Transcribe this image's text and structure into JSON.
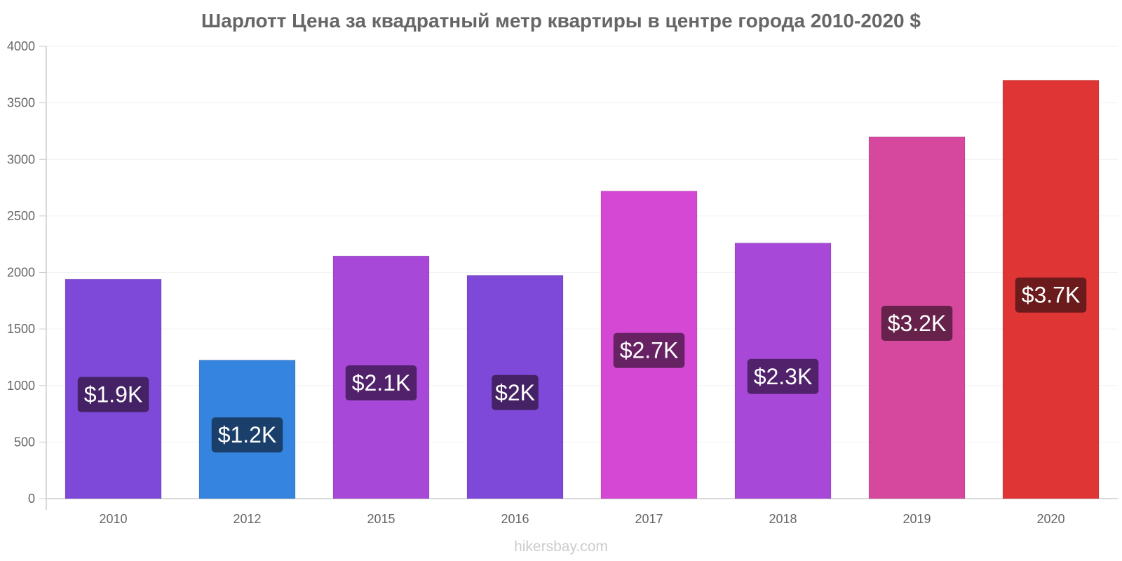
{
  "chart_data": {
    "type": "bar",
    "title": "Шарлотт Цена за квадратный метр квартиры в центре города 2010-2020 $",
    "xlabel": "",
    "ylabel": "",
    "ylim": [
      0,
      4000
    ],
    "yticks": [
      0,
      500,
      1000,
      1500,
      2000,
      2500,
      3000,
      3500,
      4000
    ],
    "grid": true,
    "categories": [
      "2010",
      "2012",
      "2015",
      "2016",
      "2017",
      "2018",
      "2019",
      "2020"
    ],
    "values": [
      1940,
      1225,
      2145,
      1975,
      2720,
      2260,
      3200,
      3700
    ],
    "value_labels": [
      "$1.9K",
      "$1.2K",
      "$2.1K",
      "$2K",
      "$2.7K",
      "$2.3K",
      "$3.2K",
      "$3.7K"
    ],
    "bar_colors": [
      "#7e48d8",
      "#3584e0",
      "#a748d8",
      "#7e48d8",
      "#d448d4",
      "#a748d8",
      "#d6489e",
      "#e03535"
    ],
    "label_bg_colors": [
      "#442265",
      "#1b3f6b",
      "#51226b",
      "#442265",
      "#672264",
      "#51226b",
      "#67224b",
      "#6b1b1b"
    ]
  },
  "footer": {
    "credit": "hikersbay.com"
  }
}
